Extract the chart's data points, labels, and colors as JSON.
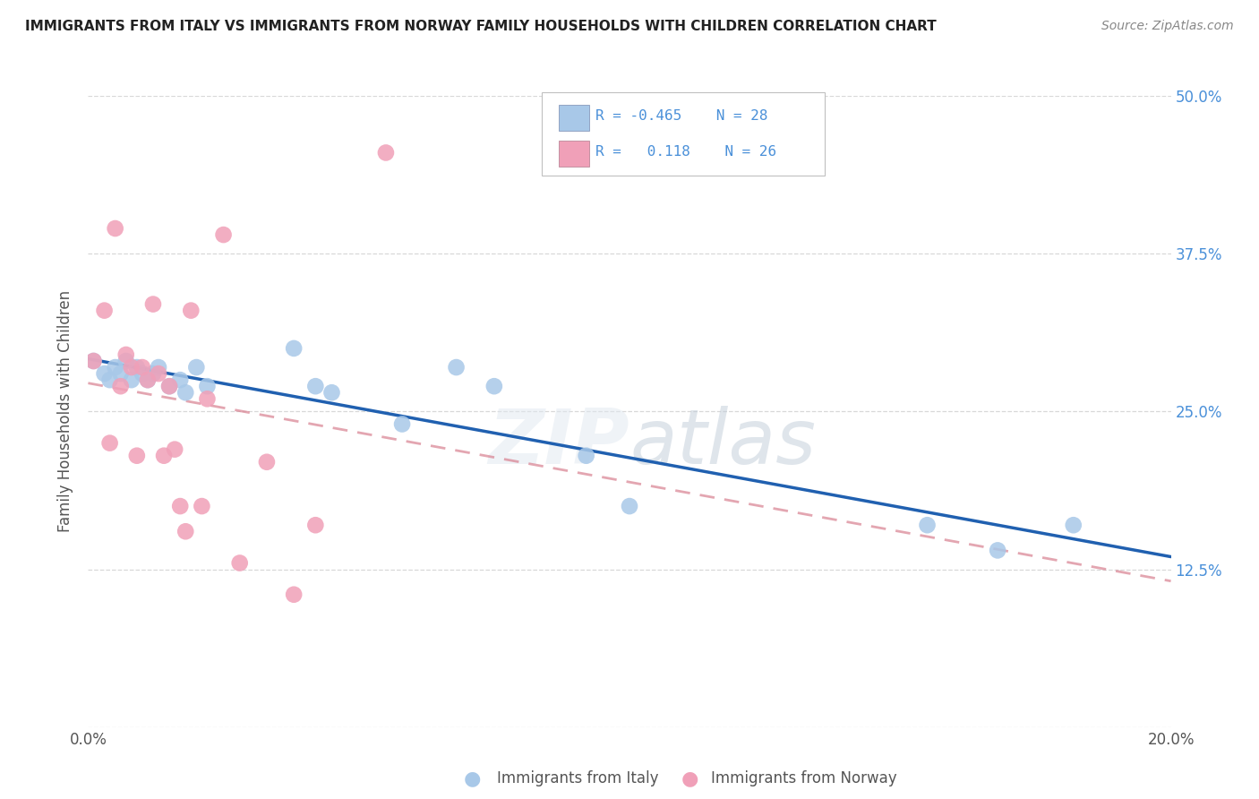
{
  "title": "IMMIGRANTS FROM ITALY VS IMMIGRANTS FROM NORWAY FAMILY HOUSEHOLDS WITH CHILDREN CORRELATION CHART",
  "source": "Source: ZipAtlas.com",
  "ylabel": "Family Households with Children",
  "x_min": 0.0,
  "x_max": 0.2,
  "y_min": 0.0,
  "y_max": 0.5,
  "x_ticks": [
    0.0,
    0.04,
    0.08,
    0.12,
    0.16,
    0.2
  ],
  "x_tick_labels": [
    "0.0%",
    "",
    "",
    "",
    "",
    "20.0%"
  ],
  "y_ticks": [
    0.0,
    0.125,
    0.25,
    0.375,
    0.5
  ],
  "y_tick_labels": [
    "",
    "12.5%",
    "25.0%",
    "37.5%",
    "50.0%"
  ],
  "italy_color": "#a8c8e8",
  "norway_color": "#f0a0b8",
  "italy_line_color": "#2060b0",
  "norway_line_color": "#d88090",
  "R_italy": -0.465,
  "N_italy": 28,
  "R_norway": 0.118,
  "N_norway": 26,
  "legend_text_color": "#4a90d9",
  "italy_x": [
    0.001,
    0.003,
    0.004,
    0.005,
    0.006,
    0.007,
    0.008,
    0.009,
    0.01,
    0.011,
    0.012,
    0.013,
    0.015,
    0.017,
    0.018,
    0.02,
    0.022,
    0.038,
    0.042,
    0.045,
    0.058,
    0.068,
    0.075,
    0.092,
    0.1,
    0.155,
    0.168,
    0.182
  ],
  "italy_y": [
    0.29,
    0.28,
    0.275,
    0.285,
    0.28,
    0.29,
    0.275,
    0.285,
    0.28,
    0.275,
    0.28,
    0.285,
    0.27,
    0.275,
    0.265,
    0.285,
    0.27,
    0.3,
    0.27,
    0.265,
    0.24,
    0.285,
    0.27,
    0.215,
    0.175,
    0.16,
    0.14,
    0.16
  ],
  "norway_x": [
    0.001,
    0.003,
    0.004,
    0.005,
    0.006,
    0.007,
    0.008,
    0.009,
    0.01,
    0.011,
    0.012,
    0.013,
    0.014,
    0.015,
    0.016,
    0.017,
    0.018,
    0.019,
    0.021,
    0.022,
    0.025,
    0.028,
    0.033,
    0.038,
    0.042,
    0.055
  ],
  "norway_y": [
    0.29,
    0.33,
    0.225,
    0.395,
    0.27,
    0.295,
    0.285,
    0.215,
    0.285,
    0.275,
    0.335,
    0.28,
    0.215,
    0.27,
    0.22,
    0.175,
    0.155,
    0.33,
    0.175,
    0.26,
    0.39,
    0.13,
    0.21,
    0.105,
    0.16,
    0.455
  ],
  "background_color": "#ffffff",
  "grid_color": "#d8d8d8",
  "watermark_text": "ZIPatlas",
  "watermark_color": "#e0e8f0",
  "watermark_alpha": 0.5
}
